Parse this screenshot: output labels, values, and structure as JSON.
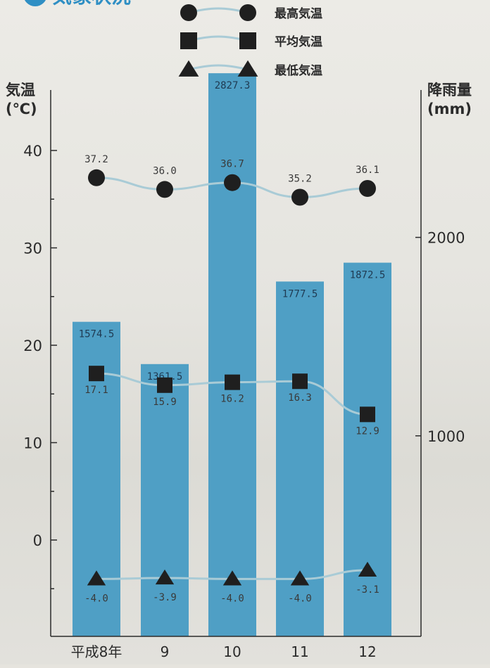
{
  "chart_data": {
    "type": "bar",
    "title": "気象状況",
    "categories": [
      "平成8年",
      "9",
      "10",
      "11",
      "12"
    ],
    "y_left": {
      "label_line1": "気温",
      "label_line2": "(℃)",
      "range": [
        -10,
        45
      ],
      "ticks": [
        0,
        10,
        20,
        30,
        40
      ]
    },
    "y_right": {
      "label_line1": "降雨量",
      "label_line2": "(mm)",
      "range": [
        -500,
        2950
      ],
      "ticks": [
        1000,
        2000
      ]
    },
    "rainfall": {
      "values": [
        1574.5,
        1361.5,
        2827.3,
        1777.5,
        1872.5
      ],
      "labels": [
        "1574.5",
        "1361.5",
        "2827.3",
        "1777.5",
        "1872.5"
      ],
      "color": "#4f9fc5"
    },
    "series": [
      {
        "name": "最高気温",
        "marker": "circle",
        "values": [
          37.2,
          36.0,
          36.7,
          35.2,
          36.1
        ],
        "labels": [
          "37.2",
          "36.0",
          "36.7",
          "35.2",
          "36.1"
        ]
      },
      {
        "name": "平均気温",
        "marker": "square",
        "values": [
          17.1,
          15.9,
          16.2,
          16.3,
          12.9
        ],
        "labels": [
          "17.1",
          "15.9",
          "16.2",
          "16.3",
          "12.9"
        ]
      },
      {
        "name": "最低気温",
        "marker": "triangle",
        "values": [
          -4.0,
          -3.9,
          -4.0,
          -4.0,
          -3.1
        ],
        "labels": [
          "-4.0",
          "-3.9",
          "-4.0",
          "-4.0",
          "-3.1"
        ]
      }
    ],
    "colors": {
      "marker": "#1f1f1f",
      "line": "#a9cbd6",
      "title": "#2f8fc4"
    }
  }
}
